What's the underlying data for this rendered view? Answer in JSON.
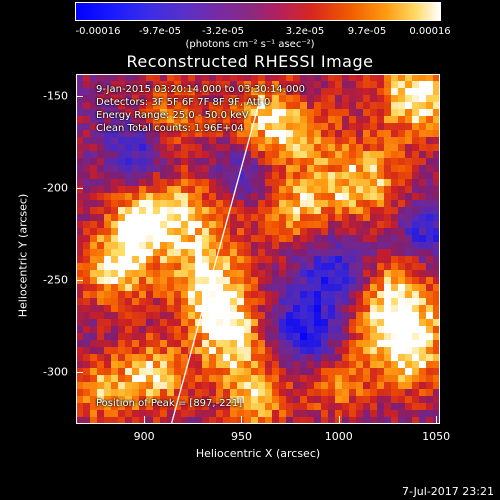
{
  "colorbar": {
    "ticks": [
      "-0.00016",
      "-9.7e-05",
      "-3.2e-05",
      "3.2e-05",
      "9.7e-05",
      "0.00016"
    ],
    "units": "(photons cm⁻² s⁻¹ asec⁻²)"
  },
  "title": "Reconstructed RHESSI Image",
  "annotations": {
    "time": "9-Jan-2015 03:20:14.000 to 03:30:14.000",
    "detectors": "Detectors: 3F 5F 6F 7F 8F 9F, Att 0",
    "energy": "Energy Range: 25.0 - 50.0 keV",
    "clean": "Clean    Total counts: 1.96E+04",
    "peak": "Position of Peak = [897,-221]"
  },
  "chart_data": {
    "type": "heatmap",
    "title": "Reconstructed RHESSI Image",
    "xlabel": "Heliocentric X (arcsec)",
    "ylabel": "Heliocentric Y (arcsec)",
    "xlim": [
      865,
      1052
    ],
    "ylim": [
      -328,
      -138
    ],
    "x_ticks": [
      "900",
      "950",
      "1000",
      "1050"
    ],
    "y_ticks": [
      "-150",
      "-200",
      "-250",
      "-300"
    ],
    "x_tick_values": [
      900,
      950,
      1000,
      1050
    ],
    "y_tick_values": [
      -150,
      -200,
      -250,
      -300
    ],
    "colorbar_range": [
      -0.00016,
      0.00016
    ],
    "peak_position": [
      897,
      -221
    ],
    "limb_line": [
      [
        914,
        -328
      ],
      [
        960,
        -150
      ]
    ],
    "colors": {
      "background": "#000000",
      "limb": "#ffffff",
      "low": "#0000ff",
      "high": "#ffffff"
    }
  },
  "footer": {
    "date": "7-Jul-2017 23:21"
  }
}
